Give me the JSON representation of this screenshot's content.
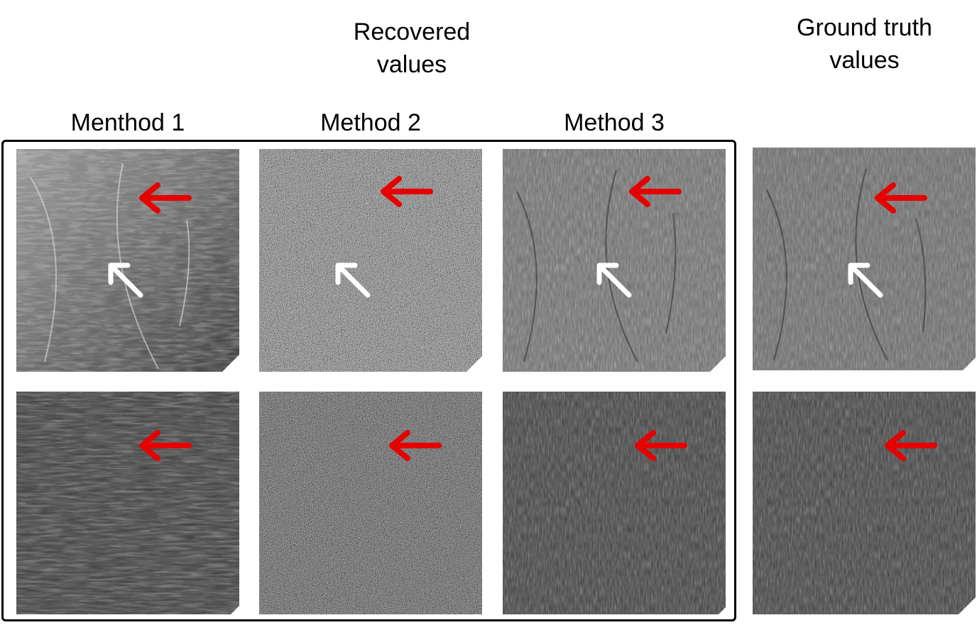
{
  "header": {
    "recovered": "Recovered\nvalues",
    "ground_truth": "Ground truth\nvalues"
  },
  "columns": [
    "Menthod 1",
    "Method 2",
    "Method 3"
  ],
  "panels": [
    {
      "name": "m1-top",
      "style": "posterized",
      "arrows": [
        "red",
        "white"
      ]
    },
    {
      "name": "m2-top",
      "style": "noisy",
      "arrows": [
        "red",
        "white"
      ]
    },
    {
      "name": "m3-top",
      "style": "textured",
      "arrows": [
        "red",
        "white"
      ]
    },
    {
      "name": "gt-top",
      "style": "textured",
      "arrows": [
        "red",
        "white"
      ]
    },
    {
      "name": "m1-bottom",
      "style": "posterized-dark",
      "arrows": [
        "red"
      ]
    },
    {
      "name": "m2-bottom",
      "style": "noisy",
      "arrows": [
        "red"
      ]
    },
    {
      "name": "m3-bottom",
      "style": "textured-dark",
      "arrows": [
        "red"
      ]
    },
    {
      "name": "gt-bottom",
      "style": "textured-dark",
      "arrows": [
        "red"
      ]
    }
  ],
  "colors": {
    "red_arrow": "#e60000",
    "white_arrow": "#ffffff",
    "frame": "#000000"
  }
}
